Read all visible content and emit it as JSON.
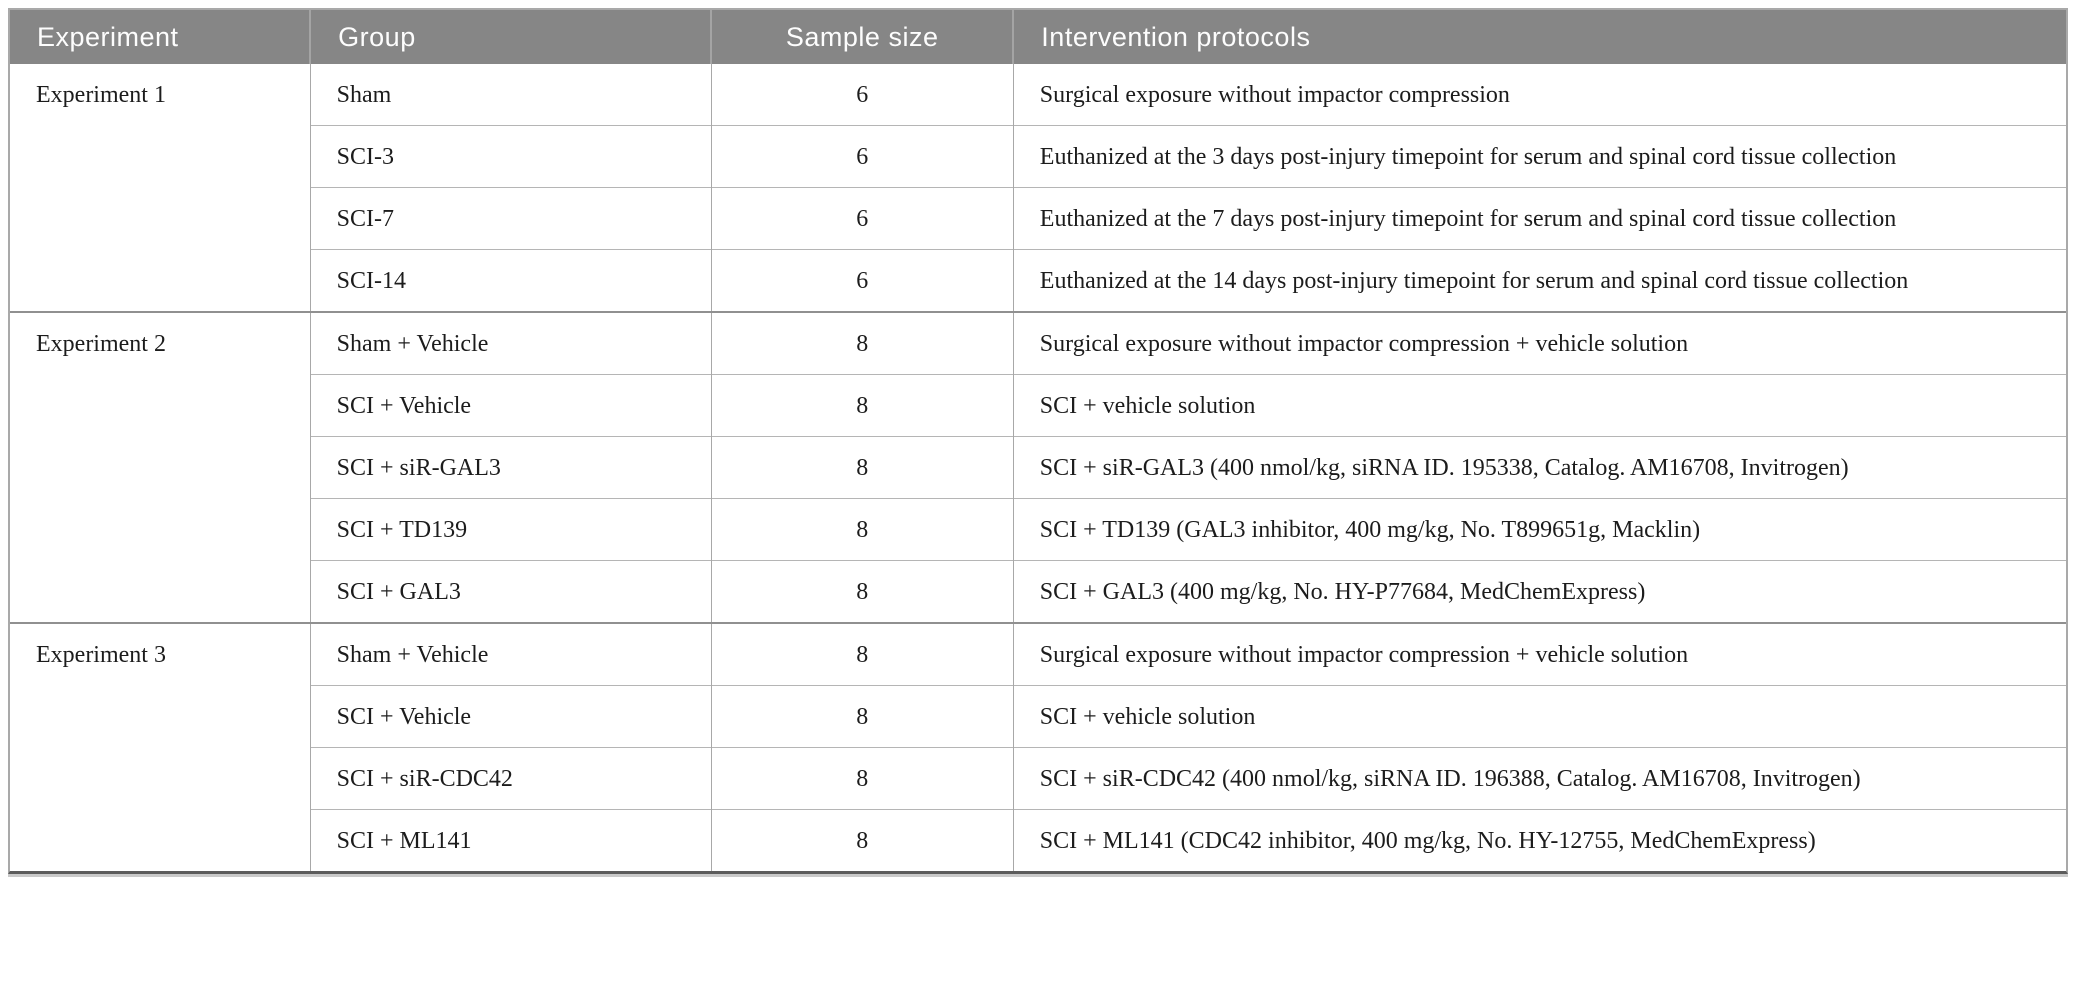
{
  "table": {
    "columns": [
      {
        "label": "Experiment",
        "align": "left"
      },
      {
        "label": "Group",
        "align": "left"
      },
      {
        "label": "Sample size",
        "align": "center"
      },
      {
        "label": "Intervention protocols",
        "align": "left"
      }
    ],
    "sections": [
      {
        "experiment": "Experiment 1",
        "rows": [
          {
            "group": "Sham",
            "sample_size": "6",
            "protocol": "Surgical exposure without impactor compression"
          },
          {
            "group": "SCI-3",
            "sample_size": "6",
            "protocol": "Euthanized at the 3 days post-injury timepoint for serum and spinal cord tissue collection"
          },
          {
            "group": "SCI-7",
            "sample_size": "6",
            "protocol": "Euthanized at the 7 days post-injury timepoint for serum and spinal cord tissue collection"
          },
          {
            "group": "SCI-14",
            "sample_size": "6",
            "protocol": "Euthanized at the 14 days post-injury timepoint for serum and spinal cord tissue collection"
          }
        ]
      },
      {
        "experiment": "Experiment 2",
        "rows": [
          {
            "group": "Sham + Vehicle",
            "sample_size": "8",
            "protocol": "Surgical exposure without impactor compression + vehicle solution"
          },
          {
            "group": "SCI + Vehicle",
            "sample_size": "8",
            "protocol": "SCI + vehicle solution"
          },
          {
            "group": "SCI + siR-GAL3",
            "sample_size": "8",
            "protocol": "SCI + siR-GAL3 (400 nmol/kg, siRNA ID. 195338, Catalog. AM16708, Invitrogen)"
          },
          {
            "group": "SCI + TD139",
            "sample_size": "8",
            "protocol": "SCI + TD139 (GAL3 inhibitor, 400 mg/kg, No. T899651g, Macklin)"
          },
          {
            "group": "SCI + GAL3",
            "sample_size": "8",
            "protocol": "SCI + GAL3 (400 mg/kg, No. HY-P77684, MedChemExpress)"
          }
        ]
      },
      {
        "experiment": "Experiment 3",
        "rows": [
          {
            "group": "Sham + Vehicle",
            "sample_size": "8",
            "protocol": "Surgical exposure without impactor compression + vehicle solution"
          },
          {
            "group": "SCI + Vehicle",
            "sample_size": "8",
            "protocol": "SCI + vehicle solution"
          },
          {
            "group": "SCI + siR-CDC42",
            "sample_size": "8",
            "protocol": "SCI + siR-CDC42 (400 nmol/kg, siRNA ID. 196388, Catalog. AM16708, Invitrogen)"
          },
          {
            "group": "SCI + ML141",
            "sample_size": "8",
            "protocol": "SCI + ML141 (CDC42 inhibitor, 400 mg/kg, No. HY-12755, MedChemExpress)"
          }
        ]
      }
    ],
    "colors": {
      "header_background": "#868686",
      "header_text": "#fdfdfd",
      "body_text": "#1c1c1c",
      "grid_line": "#b5b5b5",
      "section_line": "#909090",
      "outer_border": "#a9a9a9",
      "bottom_rule": "#5c5c5c"
    }
  }
}
